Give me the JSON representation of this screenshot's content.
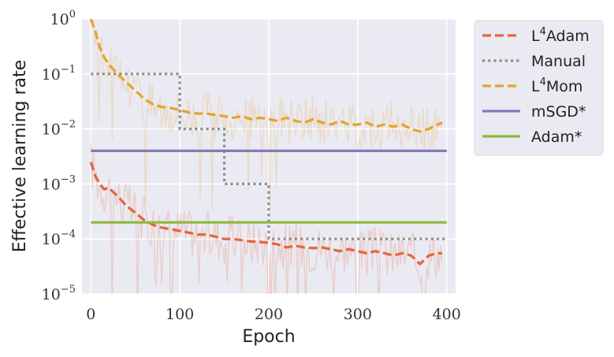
{
  "chart_data": {
    "type": "line",
    "xlabel": "Epoch",
    "ylabel": "Effective learning rate",
    "xlim": [
      -10,
      410
    ],
    "ylim": [
      1e-05,
      1
    ],
    "yscale": "log",
    "grid": true,
    "legend_position": "outside-right",
    "xticks": [
      {
        "value": 0,
        "label": "0"
      },
      {
        "value": 100,
        "label": "100"
      },
      {
        "value": 200,
        "label": "200"
      },
      {
        "value": 300,
        "label": "300"
      },
      {
        "value": 400,
        "label": "400"
      }
    ],
    "yticks": [
      {
        "value": 1,
        "base": "10",
        "exp": "0"
      },
      {
        "value": 0.1,
        "base": "10",
        "exp": "−1"
      },
      {
        "value": 0.01,
        "base": "10",
        "exp": "−2"
      },
      {
        "value": 0.001,
        "base": "10",
        "exp": "−3"
      },
      {
        "value": 0.0001,
        "base": "10",
        "exp": "−4"
      },
      {
        "value": 1e-05,
        "base": "10",
        "exp": "−5"
      }
    ],
    "series": [
      {
        "name": "L4Adam",
        "label_main": "L",
        "label_sup": "4",
        "label_rest": "Adam",
        "color": "#e8643c",
        "style": "dashed",
        "has_raw": true,
        "x": [
          0,
          5,
          10,
          15,
          20,
          30,
          40,
          50,
          60,
          70,
          80,
          90,
          100,
          110,
          120,
          130,
          140,
          150,
          160,
          170,
          180,
          190,
          200,
          210,
          220,
          230,
          240,
          250,
          260,
          270,
          280,
          290,
          300,
          310,
          320,
          330,
          340,
          350,
          360,
          370,
          380,
          390,
          395
        ],
        "y": [
          0.0025,
          0.0014,
          0.001,
          0.0008,
          0.00085,
          0.0006,
          0.0004,
          0.0003,
          0.00022,
          0.00018,
          0.00016,
          0.00015,
          0.00014,
          0.00013,
          0.00012,
          0.00012,
          0.00011,
          0.0001,
          0.0001,
          9.5e-05,
          9e-05,
          8.8e-05,
          8.5e-05,
          8e-05,
          7e-05,
          7.5e-05,
          7e-05,
          6.8e-05,
          7e-05,
          6.5e-05,
          6e-05,
          6.5e-05,
          6e-05,
          5.5e-05,
          6e-05,
          5.5e-05,
          5e-05,
          5.5e-05,
          5e-05,
          3.5e-05,
          5e-05,
          5.5e-05,
          5.5e-05
        ]
      },
      {
        "name": "Manual",
        "label_main": "Manual",
        "label_sup": "",
        "label_rest": "",
        "color": "#8c8c8c",
        "style": "dotted",
        "has_raw": false,
        "x": [
          0,
          100,
          100,
          150,
          150,
          200,
          200,
          400
        ],
        "y": [
          0.1,
          0.1,
          0.01,
          0.01,
          0.001,
          0.001,
          0.0001,
          0.0001
        ]
      },
      {
        "name": "L4Mom",
        "label_main": "L",
        "label_sup": "4",
        "label_rest": "Mom",
        "color": "#e6a22c",
        "style": "dashed",
        "has_raw": true,
        "x": [
          0,
          5,
          10,
          15,
          20,
          30,
          40,
          50,
          60,
          70,
          80,
          90,
          100,
          110,
          120,
          130,
          140,
          150,
          160,
          170,
          180,
          190,
          200,
          210,
          220,
          230,
          240,
          250,
          260,
          270,
          280,
          290,
          300,
          310,
          320,
          330,
          340,
          350,
          360,
          370,
          380,
          390,
          395
        ],
        "y": [
          1.0,
          0.6,
          0.3,
          0.2,
          0.15,
          0.1,
          0.07,
          0.05,
          0.035,
          0.028,
          0.025,
          0.024,
          0.022,
          0.02,
          0.019,
          0.019,
          0.018,
          0.017,
          0.016,
          0.017,
          0.015,
          0.016,
          0.015,
          0.014,
          0.016,
          0.014,
          0.013,
          0.015,
          0.013,
          0.012,
          0.014,
          0.012,
          0.012,
          0.013,
          0.011,
          0.012,
          0.011,
          0.012,
          0.01,
          0.009,
          0.01,
          0.012,
          0.013
        ]
      },
      {
        "name": "mSGD*",
        "label_main": "mSGD*",
        "label_sup": "",
        "label_rest": "",
        "color": "#8878b8",
        "style": "solid",
        "has_raw": false,
        "x": [
          0,
          400
        ],
        "y": [
          0.004,
          0.004
        ]
      },
      {
        "name": "Adam*",
        "label_main": "Adam*",
        "label_sup": "",
        "label_rest": "",
        "color": "#8db83c",
        "style": "solid",
        "has_raw": false,
        "x": [
          0,
          400
        ],
        "y": [
          0.0002,
          0.0002
        ]
      }
    ]
  }
}
